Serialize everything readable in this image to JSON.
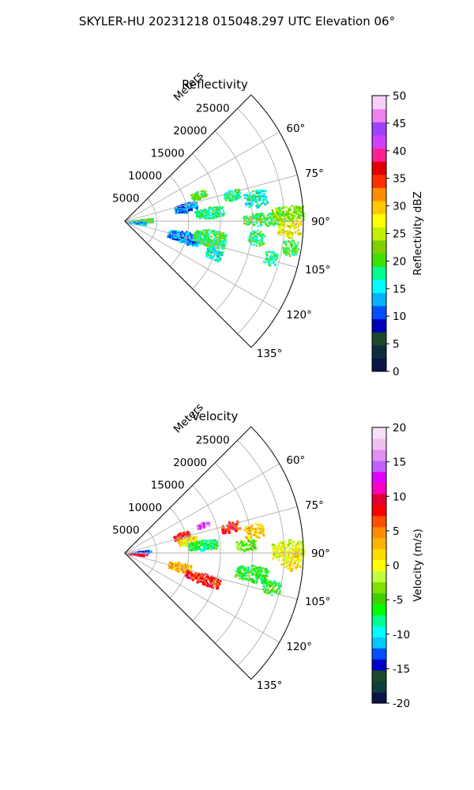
{
  "figure": {
    "suptitle": "SKYLER-HU  20231218  015048.297 UTC Elevation 06°"
  },
  "chart_data": [
    {
      "type": "heatmap",
      "projection": "polar-sector",
      "title": "Reflectivity",
      "range_label": "Meters",
      "range_ticks": [
        5000,
        10000,
        15000,
        20000,
        25000
      ],
      "range_limit": [
        0,
        28000
      ],
      "azimuth_ticks": [
        "60°",
        "75°",
        "90°",
        "105°",
        "120°",
        "135°"
      ],
      "azimuth_tick_values": [
        60,
        75,
        90,
        105,
        120,
        135
      ],
      "azimuth_limit": [
        45,
        135
      ],
      "grid": true,
      "colorbar": {
        "label": "Reflectivity dBZ",
        "min": 0,
        "max": 50,
        "ticks": [
          0,
          5,
          10,
          15,
          20,
          25,
          30,
          35,
          40,
          45,
          50
        ],
        "colors": [
          "#0a1446",
          "#0f2d3c",
          "#1a4a2a",
          "#0000b4",
          "#0050ff",
          "#00b4ff",
          "#00ffff",
          "#00ff90",
          "#40e000",
          "#80d000",
          "#c0f000",
          "#ffff00",
          "#ffc800",
          "#ff8c00",
          "#ff3000",
          "#e00000",
          "#ff2090",
          "#d040ff",
          "#a040ff",
          "#f080f0",
          "#f8d0f8"
        ]
      },
      "echoes": [
        {
          "az": 87,
          "r0": 800,
          "r1": 4300,
          "spread": 5.5,
          "value": 20
        },
        {
          "az": 96,
          "r0": 600,
          "r1": 3200,
          "spread": 5,
          "value": 14
        },
        {
          "az": 77,
          "r0": 8000,
          "r1": 11500,
          "spread": 4.5,
          "value": 12
        },
        {
          "az": 84,
          "r0": 11000,
          "r1": 15500,
          "spread": 4,
          "value": 18
        },
        {
          "az": 105,
          "r0": 7000,
          "r1": 12000,
          "spread": 6,
          "value": 12
        },
        {
          "az": 101,
          "r0": 11000,
          "r1": 16000,
          "spread": 6,
          "value": 19
        },
        {
          "az": 76,
          "r0": 16000,
          "r1": 18500,
          "spread": 3,
          "value": 18
        },
        {
          "az": 80,
          "r0": 19000,
          "r1": 22500,
          "spread": 4,
          "value": 16
        },
        {
          "az": 89,
          "r0": 18500,
          "r1": 24500,
          "spread": 3,
          "value": 20
        },
        {
          "az": 91,
          "r0": 24000,
          "r1": 27500,
          "spread": 5,
          "value": 27
        },
        {
          "az": 87,
          "r0": 23000,
          "r1": 28000,
          "spread": 3,
          "value": 22
        },
        {
          "az": 97,
          "r0": 19500,
          "r1": 22000,
          "spread": 3.5,
          "value": 19
        },
        {
          "az": 99,
          "r0": 25000,
          "r1": 27500,
          "spread": 3,
          "value": 20
        },
        {
          "az": 70,
          "r0": 11000,
          "r1": 13500,
          "spread": 3,
          "value": 20
        },
        {
          "az": 110,
          "r0": 13500,
          "r1": 16000,
          "spread": 4,
          "value": 16
        },
        {
          "az": 104,
          "r0": 22500,
          "r1": 24500,
          "spread": 3,
          "value": 18
        }
      ]
    },
    {
      "type": "heatmap",
      "projection": "polar-sector",
      "title": "Velocity",
      "range_label": "Meters",
      "range_ticks": [
        5000,
        10000,
        15000,
        20000,
        25000
      ],
      "range_limit": [
        0,
        28000
      ],
      "azimuth_ticks": [
        "60°",
        "75°",
        "90°",
        "105°",
        "120°",
        "135°"
      ],
      "azimuth_tick_values": [
        60,
        75,
        90,
        105,
        120,
        135
      ],
      "azimuth_limit": [
        45,
        135
      ],
      "grid": true,
      "colorbar": {
        "label": "Velocity (m/s)",
        "min": -20,
        "max": 20,
        "ticks": [
          -20,
          -15,
          -10,
          -5,
          0,
          5,
          10,
          15,
          20
        ],
        "colors": [
          "#0a1446",
          "#0f3c3c",
          "#1a4a2a",
          "#0000c8",
          "#0050ff",
          "#00c8ff",
          "#00ffff",
          "#00ff90",
          "#00ff00",
          "#40d000",
          "#80e000",
          "#c0ff40",
          "#ffff00",
          "#ffdc00",
          "#ffb400",
          "#ff8c00",
          "#ff5000",
          "#ff0000",
          "#e00030",
          "#ff00c0",
          "#e000ff",
          "#c060ff",
          "#e090f0",
          "#f0c0f0",
          "#f8e0f8"
        ]
      },
      "echoes": [
        {
          "az": 85,
          "r0": 800,
          "r1": 4000,
          "spread": 4,
          "value": -12
        },
        {
          "az": 92,
          "r0": 500,
          "r1": 3500,
          "spread": 2,
          "value": 14
        },
        {
          "az": 95,
          "r0": 600,
          "r1": 3000,
          "spread": 3,
          "value": 9
        },
        {
          "az": 73,
          "r0": 8000,
          "r1": 10500,
          "spread": 4,
          "value": 8
        },
        {
          "az": 79,
          "r0": 8500,
          "r1": 11500,
          "spread": 4,
          "value": 1
        },
        {
          "az": 84,
          "r0": 10000,
          "r1": 14500,
          "spread": 4,
          "value": -7
        },
        {
          "az": 104,
          "r0": 7000,
          "r1": 10500,
          "spread": 5,
          "value": 3
        },
        {
          "az": 108,
          "r0": 10000,
          "r1": 15500,
          "spread": 4,
          "value": 8
        },
        {
          "az": 76,
          "r0": 15500,
          "r1": 18500,
          "spread": 3,
          "value": 8
        },
        {
          "az": 80,
          "r0": 19000,
          "r1": 22000,
          "spread": 3.5,
          "value": 2
        },
        {
          "az": 99,
          "r0": 17500,
          "r1": 22500,
          "spread": 4,
          "value": -6
        },
        {
          "az": 89,
          "r0": 23000,
          "r1": 28000,
          "spread": 4,
          "value": -1
        },
        {
          "az": 92,
          "r0": 24500,
          "r1": 27500,
          "spread": 4,
          "value": 1
        },
        {
          "az": 86,
          "r0": 17500,
          "r1": 20500,
          "spread": 3,
          "value": -4
        },
        {
          "az": 70,
          "r0": 12000,
          "r1": 14000,
          "spread": 2,
          "value": 14
        },
        {
          "az": 103,
          "r0": 22000,
          "r1": 25000,
          "spread": 3,
          "value": -6
        }
      ]
    }
  ]
}
